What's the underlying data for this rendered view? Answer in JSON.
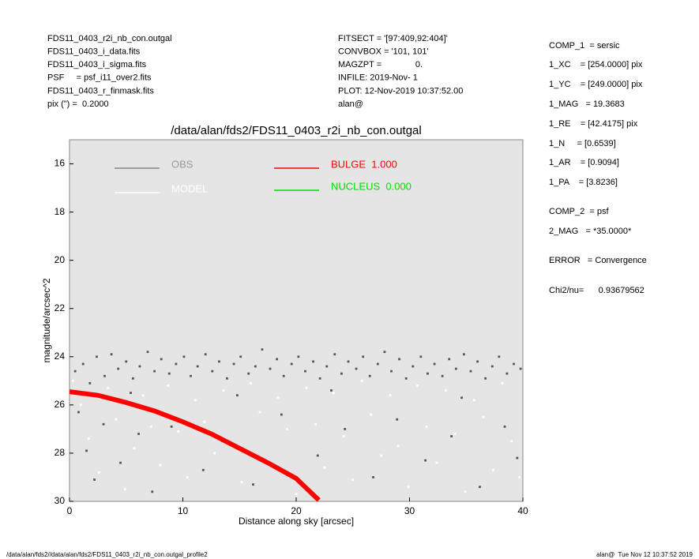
{
  "header": {
    "left": [
      "FDS11_0403_r2i_nb_con.outgal",
      "FDS11_0403_i_data.fits",
      "FDS11_0403_i_sigma.fits",
      "PSF     = psf_i11_over2.fits",
      "FDS11_0403_r_finmask.fits",
      "pix (\") =  0.2000"
    ],
    "middle": [
      "FITSECT = '[97:409,92:404]'",
      "CONVBOX = '101, 101'",
      "MAGZPT =              0.",
      "INFILE: 2019-Nov- 1",
      "PLOT: 12-Nov-2019 10:37:52.00",
      "alan@"
    ]
  },
  "parameters": [
    "COMP_1  = sersic",
    "1_XC    = [254.0000] pix",
    "1_YC    = [249.0000] pix",
    "1_MAG   = 19.3683",
    "1_RE    = [42.4175] pix",
    "1_N     = [0.6539]",
    "1_AR    = [0.9094]",
    "1_PA    = [3.8236]",
    "COMP_2  = psf",
    "2_MAG   = *35.0000*",
    "ERROR   = Convergence",
    "Chi2/nu=      0.93679562"
  ],
  "footer": {
    "left": "/data/alan/fds2//data/alan/fds2/FDS11_0403_r2i_nb_con.outgal_profile2",
    "right": "alan@  Tue Nov 12 10:37:52 2019"
  },
  "chart_data": {
    "type": "scatter",
    "title": "/data/alan/fds2/FDS11_0403_r2i_nb_con.outgal",
    "x_label": "Distance along sky [arcsec]",
    "y_label": "magnitude/arcsec^2",
    "xlim": [
      0,
      40
    ],
    "xticks": [
      0,
      10,
      20,
      30,
      40
    ],
    "ylim": [
      30,
      15
    ],
    "yticks": [
      16,
      18,
      20,
      22,
      24,
      26,
      28,
      30
    ],
    "background": "#e5e5e5",
    "series": [
      {
        "name": "OBS",
        "color": "#555555",
        "mark": "point",
        "x": [
          0.5,
          1.2,
          1.8,
          2.4,
          3.1,
          3.7,
          4.3,
          5.0,
          5.6,
          6.2,
          6.9,
          7.5,
          8.1,
          8.8,
          9.4,
          10.1,
          10.7,
          11.3,
          12.0,
          12.6,
          13.2,
          13.9,
          14.5,
          15.1,
          15.8,
          16.4,
          17.0,
          17.7,
          18.3,
          18.9,
          19.6,
          20.2,
          20.8,
          21.5,
          22.1,
          22.7,
          23.4,
          24.0,
          24.6,
          25.3,
          25.9,
          26.5,
          27.2,
          27.8,
          28.4,
          29.1,
          29.7,
          30.3,
          31.0,
          31.6,
          32.2,
          32.9,
          33.5,
          34.1,
          34.8,
          35.4,
          36.0,
          36.7,
          37.3,
          37.9,
          38.6,
          39.2,
          39.8,
          0.8,
          1.5,
          2.2,
          3.0,
          4.5,
          6.1,
          7.3,
          9.0,
          11.8,
          13.5,
          16.2,
          18.7,
          21.9,
          24.3,
          26.8,
          28.9,
          31.4,
          33.7,
          36.2,
          38.4,
          39.5,
          5.4,
          14.8,
          23.1,
          34.6
        ],
        "values": [
          24.6,
          24.3,
          25.1,
          24.0,
          24.8,
          23.9,
          24.5,
          24.2,
          24.9,
          24.4,
          23.8,
          24.6,
          24.1,
          24.7,
          24.3,
          24.0,
          24.8,
          24.4,
          23.9,
          24.6,
          24.2,
          24.9,
          24.3,
          24.0,
          24.7,
          24.4,
          23.7,
          24.5,
          24.1,
          24.8,
          24.3,
          24.0,
          24.6,
          24.2,
          24.9,
          24.4,
          23.9,
          24.7,
          24.2,
          24.5,
          24.0,
          24.8,
          24.3,
          23.8,
          24.6,
          24.1,
          24.9,
          24.4,
          24.0,
          24.7,
          24.3,
          24.8,
          24.1,
          24.5,
          23.9,
          24.6,
          24.2,
          24.9,
          24.4,
          24.0,
          24.7,
          24.3,
          24.5,
          26.3,
          27.9,
          29.1,
          26.8,
          28.4,
          27.2,
          29.6,
          26.9,
          28.7,
          27.5,
          29.3,
          26.4,
          28.1,
          27.0,
          29.0,
          26.6,
          28.3,
          27.3,
          29.4,
          26.9,
          28.2,
          25.5,
          25.6,
          25.4,
          25.7
        ]
      },
      {
        "name": "MODEL",
        "color": "#ffffff",
        "mark": "point",
        "x": [
          0.3,
          1.0,
          1.7,
          2.6,
          3.4,
          4.1,
          4.9,
          5.7,
          6.5,
          7.2,
          8.0,
          8.7,
          9.6,
          10.4,
          11.1,
          11.9,
          12.8,
          13.6,
          14.3,
          15.2,
          16.0,
          16.8,
          17.5,
          18.4,
          19.2,
          20.0,
          20.9,
          21.7,
          22.5,
          23.3,
          24.2,
          25.0,
          25.8,
          26.6,
          27.5,
          28.3,
          29.0,
          29.9,
          30.7,
          31.5,
          32.4,
          33.2,
          34.0,
          34.9,
          35.7,
          36.5,
          37.4,
          38.2,
          39.0,
          39.7
        ],
        "values": [
          25.0,
          26.0,
          27.4,
          28.8,
          25.3,
          26.6,
          29.5,
          27.8,
          25.6,
          26.9,
          28.5,
          25.2,
          27.1,
          29.0,
          25.8,
          26.7,
          28.0,
          25.4,
          27.6,
          29.2,
          25.1,
          26.3,
          28.3,
          25.7,
          27.0,
          29.7,
          25.3,
          26.8,
          28.6,
          25.5,
          27.3,
          29.1,
          25.0,
          26.4,
          28.1,
          25.6,
          27.7,
          29.4,
          25.2,
          26.9,
          28.4,
          25.4,
          27.2,
          29.6,
          25.8,
          26.5,
          28.7,
          25.1,
          27.5,
          29.0
        ]
      },
      {
        "name": "BULGE  1.000",
        "color": "#ff0000",
        "mark": "line",
        "x": [
          0,
          2.5,
          5,
          7.5,
          10,
          12.5,
          15,
          17.5,
          20,
          22
        ],
        "values": [
          25.45,
          25.6,
          25.9,
          26.25,
          26.7,
          27.2,
          27.8,
          28.4,
          29.05,
          29.95
        ]
      },
      {
        "name": "NUCLEUS  0.000",
        "color": "#00dd00",
        "mark": "line",
        "x": [],
        "values": []
      }
    ]
  }
}
